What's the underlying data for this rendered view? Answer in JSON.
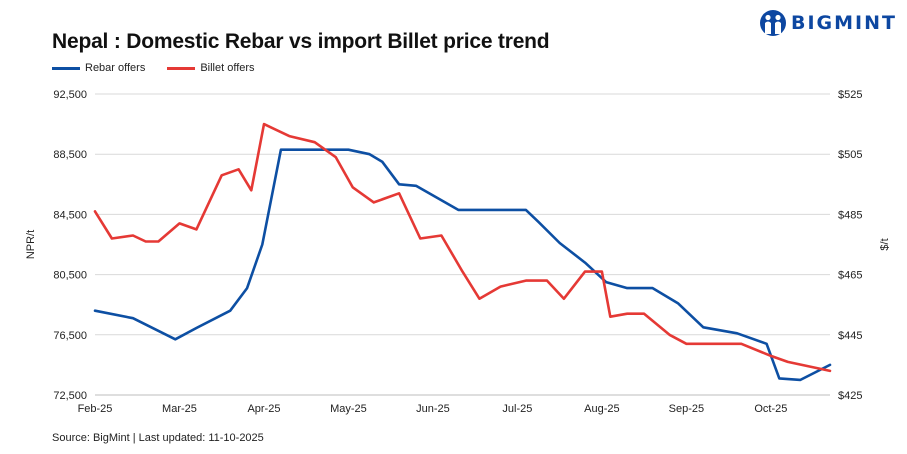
{
  "brand": {
    "name": "BIGMINT",
    "icon": "bigmint-people-logo",
    "color": "#0d47a1"
  },
  "footer": {
    "source": "Source: BigMint | Last updated: 11-10-2025"
  },
  "chart_data": {
    "type": "line",
    "title": "Nepal : Domestic Rebar vs import Billet price trend",
    "ylabel": "NPR/t",
    "y2label": "$/t",
    "ylim": [
      72500,
      92500
    ],
    "yticks": [
      "72,500",
      "76,500",
      "80,500",
      "84,500",
      "88,500",
      "92,500"
    ],
    "y2lim": [
      425,
      525
    ],
    "y2ticks": [
      "$425",
      "$445",
      "$465",
      "$485",
      "$505",
      "$525"
    ],
    "xlim": [
      0,
      8.7
    ],
    "xticks": [
      "Feb-25",
      "Mar-25",
      "Apr-25",
      "May-25",
      "Jun-25",
      "Jul-25",
      "Aug-25",
      "Sep-25",
      "Oct-25"
    ],
    "grid": "horizontal",
    "legend_position": "top-left",
    "series": [
      {
        "name": "Rebar offers",
        "axis": "left",
        "color": "#0d4fa3",
        "x": [
          0,
          0.45,
          0.95,
          1.2,
          1.6,
          1.8,
          1.98,
          2.2,
          2.7,
          3.0,
          3.25,
          3.4,
          3.6,
          3.8,
          4.3,
          4.6,
          4.85,
          5.1,
          5.25,
          5.5,
          5.8,
          6.05,
          6.3,
          6.6,
          6.9,
          7.2,
          7.6,
          7.95,
          8.1,
          8.35,
          8.7
        ],
        "y": [
          78100,
          77600,
          76200,
          76950,
          78100,
          79600,
          82500,
          88800,
          88800,
          88800,
          88500,
          88000,
          86500,
          86400,
          84800,
          84800,
          84800,
          84800,
          84000,
          82600,
          81300,
          80000,
          79600,
          79600,
          78600,
          77000,
          76600,
          75900,
          73600,
          73500,
          74500
        ]
      },
      {
        "name": "Billet offers",
        "axis": "right",
        "color": "#e53935",
        "x": [
          0,
          0.2,
          0.45,
          0.6,
          0.75,
          1.0,
          1.2,
          1.5,
          1.7,
          1.85,
          2.0,
          2.3,
          2.6,
          2.85,
          3.05,
          3.3,
          3.6,
          3.85,
          4.1,
          4.35,
          4.55,
          4.8,
          5.1,
          5.35,
          5.55,
          5.8,
          6.0,
          6.1,
          6.3,
          6.5,
          6.8,
          7.0,
          7.3,
          7.65,
          8.0,
          8.2,
          8.7
        ],
        "y": [
          486,
          477,
          478,
          476,
          476,
          482,
          480,
          498,
          500,
          493,
          515,
          511,
          509,
          504,
          494,
          489,
          492,
          477,
          478,
          466,
          457,
          461,
          463,
          463,
          457,
          466,
          466,
          451,
          452,
          452,
          445,
          442,
          442,
          442,
          438,
          436,
          433
        ]
      }
    ]
  }
}
